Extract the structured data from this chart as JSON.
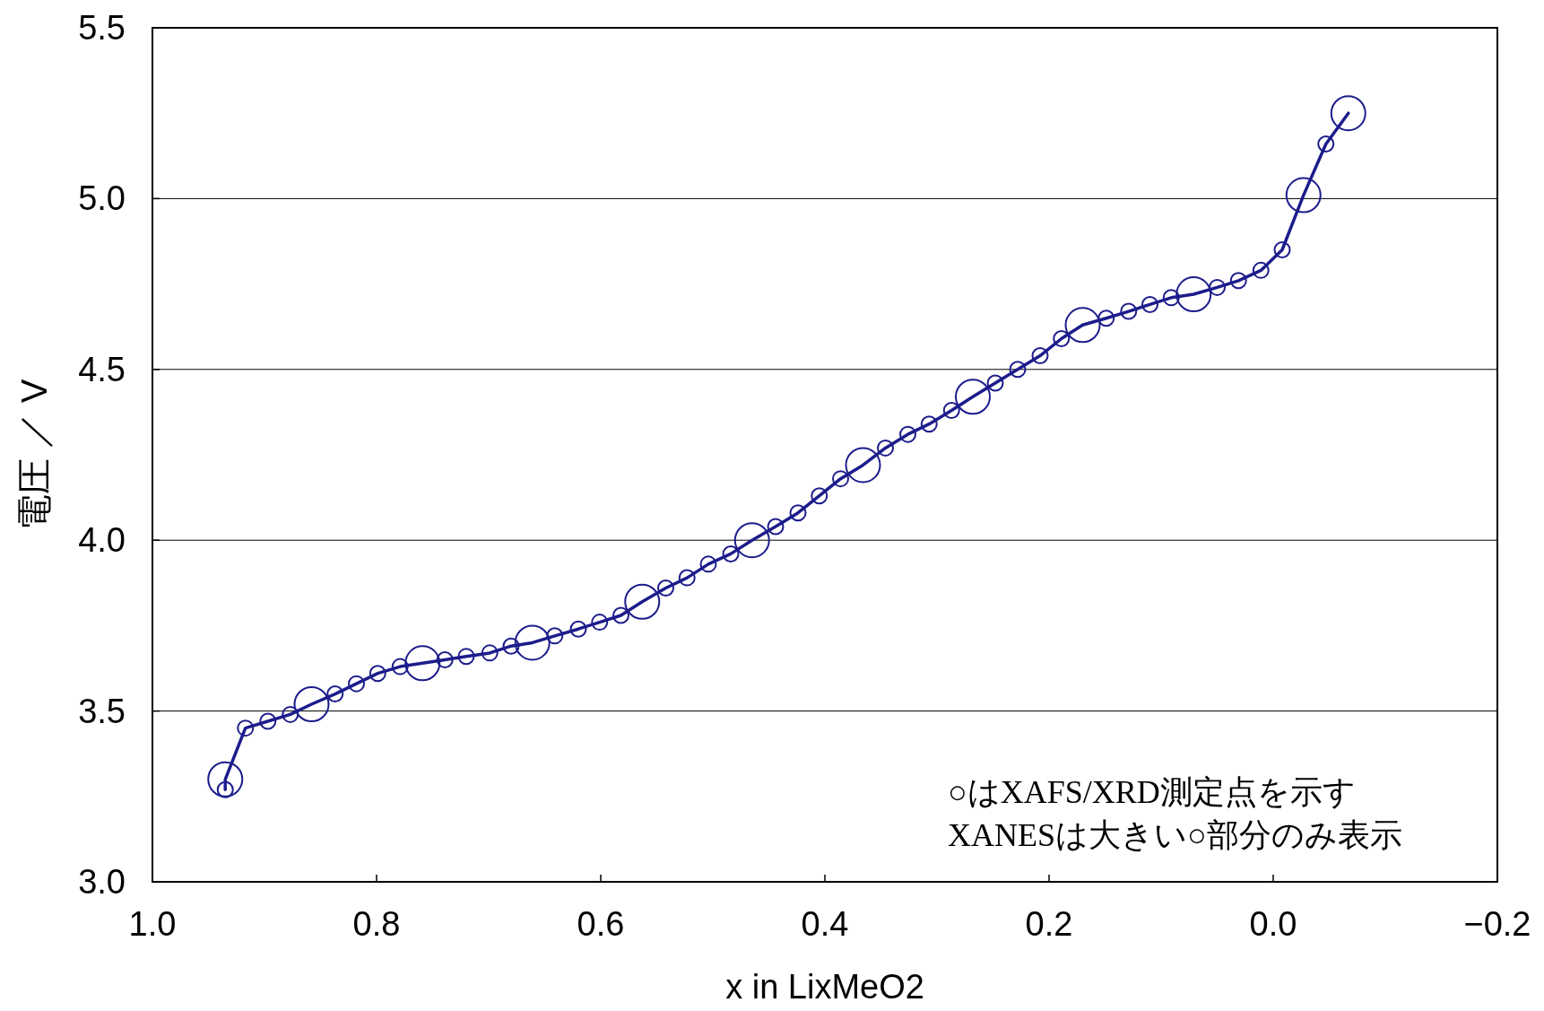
{
  "chart_data": {
    "type": "line",
    "xlabel": "x in LixMeO2",
    "ylabel": "電圧 ／ V",
    "xlim": [
      1.0,
      -0.2
    ],
    "xticks": [
      {
        "value": 1.0,
        "label": "1.0"
      },
      {
        "value": 0.8,
        "label": "0.8"
      },
      {
        "value": 0.6,
        "label": "0.6"
      },
      {
        "value": 0.4,
        "label": "0.4"
      },
      {
        "value": 0.2,
        "label": "0.2"
      },
      {
        "value": 0.0,
        "label": "0.0"
      },
      {
        "value": -0.2,
        "label": "−0.2"
      }
    ],
    "ylim": [
      3.0,
      5.5
    ],
    "yticks": [
      {
        "value": 3.0,
        "label": "3.0"
      },
      {
        "value": 3.5,
        "label": "3.5"
      },
      {
        "value": 4.0,
        "label": "4.0"
      },
      {
        "value": 4.5,
        "label": "4.5"
      },
      {
        "value": 5.0,
        "label": "5.0"
      },
      {
        "value": 5.5,
        "label": "5.5"
      }
    ],
    "grid": "y",
    "annotations": [
      "○はXAFS/XRD測定点を示す",
      "XANESは大きい○部分のみ表示"
    ],
    "series": [
      {
        "type": "line",
        "color": "#1c1c8c",
        "x": [
          0.935,
          0.935,
          0.917,
          0.897,
          0.877,
          0.858,
          0.837,
          0.818,
          0.799,
          0.779,
          0.759,
          0.739,
          0.72,
          0.699,
          0.68,
          0.661,
          0.641,
          0.62,
          0.601,
          0.582,
          0.563,
          0.542,
          0.523,
          0.504,
          0.484,
          0.465,
          0.444,
          0.424,
          0.405,
          0.386,
          0.366,
          0.346,
          0.326,
          0.307,
          0.287,
          0.268,
          0.248,
          0.228,
          0.208,
          0.189,
          0.17,
          0.149,
          0.129,
          0.11,
          0.091,
          0.071,
          0.05,
          0.031,
          0.011,
          -0.008,
          -0.027,
          -0.047,
          -0.067
        ],
        "values": [
          3.27,
          3.3,
          3.45,
          3.47,
          3.49,
          3.52,
          3.55,
          3.58,
          3.61,
          3.63,
          3.64,
          3.65,
          3.66,
          3.67,
          3.69,
          3.7,
          3.72,
          3.74,
          3.76,
          3.78,
          3.82,
          3.86,
          3.89,
          3.93,
          3.96,
          4.0,
          4.04,
          4.08,
          4.13,
          4.18,
          4.22,
          4.27,
          4.31,
          4.34,
          4.38,
          4.42,
          4.46,
          4.5,
          4.54,
          4.59,
          4.63,
          4.65,
          4.67,
          4.69,
          4.71,
          4.72,
          4.74,
          4.76,
          4.79,
          4.85,
          5.01,
          5.16,
          5.25
        ]
      },
      {
        "type": "bubble",
        "color": "#1c1c8c",
        "x": [
          0.935,
          0.917,
          0.897,
          0.877,
          0.837,
          0.818,
          0.799,
          0.779,
          0.739,
          0.72,
          0.699,
          0.68,
          0.641,
          0.62,
          0.601,
          0.582,
          0.542,
          0.523,
          0.504,
          0.484,
          0.444,
          0.424,
          0.405,
          0.386,
          0.346,
          0.326,
          0.307,
          0.287,
          0.248,
          0.228,
          0.208,
          0.189,
          0.149,
          0.129,
          0.11,
          0.091,
          0.05,
          0.031,
          0.011,
          -0.008,
          -0.047,
          0.935,
          0.858,
          0.759,
          0.661,
          0.563,
          0.465,
          0.366,
          0.268,
          0.17,
          0.071,
          -0.027,
          -0.067
        ],
        "values": [
          3.27,
          3.45,
          3.47,
          3.49,
          3.55,
          3.58,
          3.61,
          3.63,
          3.65,
          3.66,
          3.67,
          3.69,
          3.72,
          3.74,
          3.76,
          3.78,
          3.86,
          3.89,
          3.93,
          3.96,
          4.04,
          4.08,
          4.13,
          4.18,
          4.27,
          4.31,
          4.34,
          4.38,
          4.46,
          4.5,
          4.54,
          4.59,
          4.65,
          4.67,
          4.69,
          4.71,
          4.74,
          4.76,
          4.79,
          4.85,
          5.16,
          3.3,
          3.52,
          3.64,
          3.7,
          3.82,
          4.0,
          4.22,
          4.42,
          4.63,
          4.72,
          5.01,
          5.25
        ],
        "sizes": [
          0.2,
          0.2,
          0.2,
          0.2,
          0.2,
          0.2,
          0.2,
          0.2,
          0.2,
          0.2,
          0.2,
          0.2,
          0.2,
          0.2,
          0.2,
          0.2,
          0.2,
          0.2,
          0.2,
          0.2,
          0.2,
          0.2,
          0.2,
          0.2,
          0.2,
          0.2,
          0.2,
          0.2,
          0.2,
          0.2,
          0.2,
          0.2,
          0.2,
          0.2,
          0.2,
          0.2,
          0.2,
          0.2,
          0.2,
          0.2,
          0.2,
          1,
          1,
          1,
          1,
          1,
          1,
          1,
          1,
          1,
          1,
          1,
          1
        ]
      }
    ]
  }
}
